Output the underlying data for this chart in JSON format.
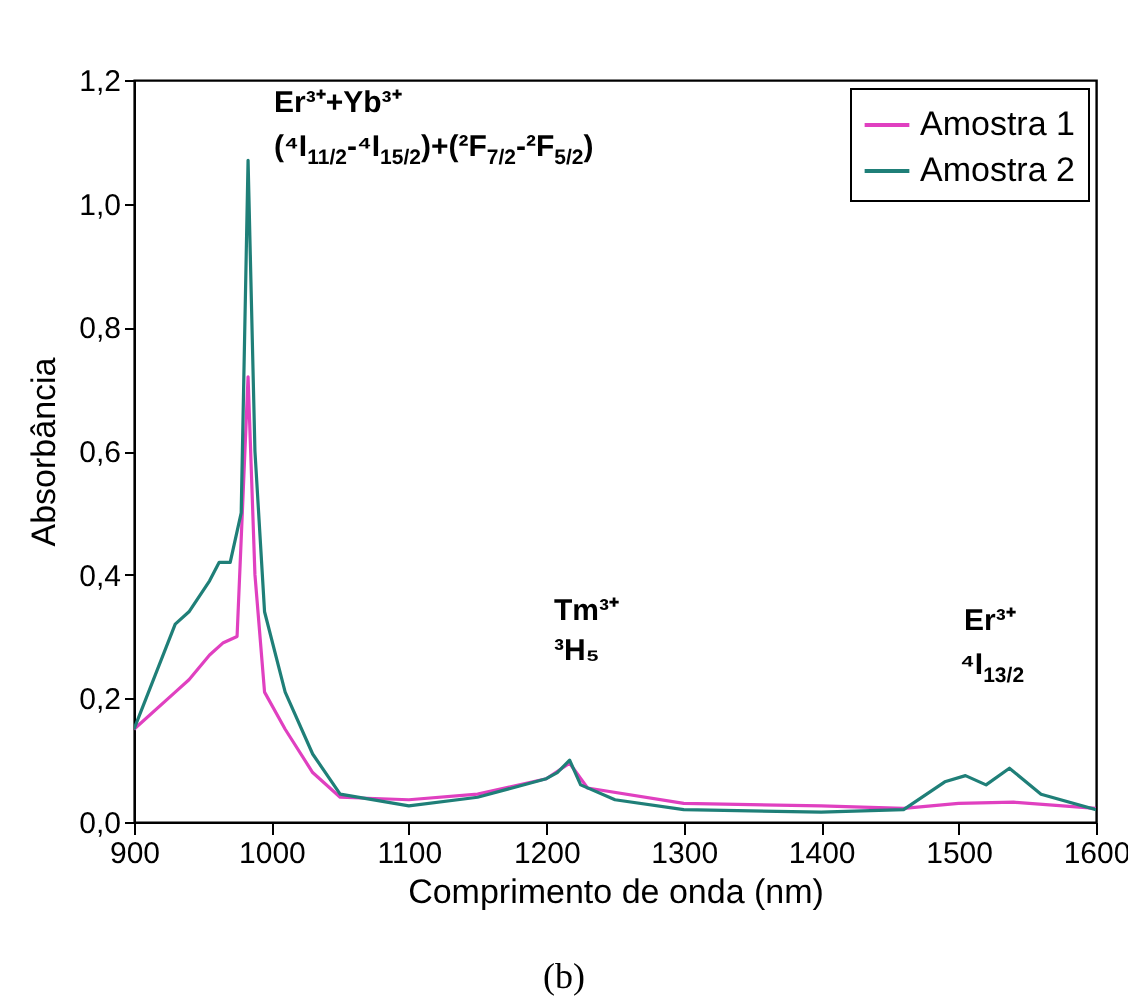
{
  "chart_data": {
    "type": "line",
    "xlabel": "Comprimento de onda (nm)",
    "ylabel": "Absorbância",
    "xlim": [
      900,
      1600
    ],
    "xticks": [
      900,
      1000,
      1100,
      1200,
      1300,
      1400,
      1500,
      1600
    ],
    "ylim": [
      0,
      1.2
    ],
    "yticks": [
      {
        "value": 0,
        "label": "0,0"
      },
      {
        "value": 0.2,
        "label": "0,2"
      },
      {
        "value": 0.4,
        "label": "0,4"
      },
      {
        "value": 0.6,
        "label": "0,6"
      },
      {
        "value": 0.8,
        "label": "0,8"
      },
      {
        "value": 1.0,
        "label": "1,0"
      },
      {
        "value": 1.2,
        "label": "1,2"
      }
    ],
    "legend": "top right",
    "grid": false,
    "marker": "none",
    "line_style": "solid",
    "series": [
      {
        "name": "Amostra 1",
        "color": "#e040c0",
        "x": [
          900,
          930,
          940,
          955,
          965,
          975,
          983,
          988,
          995,
          1010,
          1030,
          1050,
          1100,
          1150,
          1200,
          1217,
          1230,
          1300,
          1400,
          1460,
          1500,
          1540,
          1600
        ],
        "values": [
          0.15,
          0.21,
          0.23,
          0.27,
          0.29,
          0.3,
          0.72,
          0.4,
          0.21,
          0.15,
          0.08,
          0.04,
          0.036,
          0.045,
          0.07,
          0.095,
          0.055,
          0.03,
          0.026,
          0.022,
          0.03,
          0.032,
          0.022
        ]
      },
      {
        "name": "Amostra 2",
        "color": "#1f7f78",
        "x": [
          900,
          930,
          940,
          955,
          962,
          970,
          978,
          983,
          988,
          995,
          1010,
          1030,
          1050,
          1100,
          1150,
          1200,
          1208,
          1217,
          1225,
          1250,
          1300,
          1400,
          1460,
          1490,
          1505,
          1520,
          1537,
          1560,
          1600
        ],
        "values": [
          0.15,
          0.32,
          0.34,
          0.39,
          0.42,
          0.42,
          0.5,
          1.07,
          0.6,
          0.34,
          0.21,
          0.11,
          0.045,
          0.026,
          0.04,
          0.07,
          0.08,
          0.1,
          0.06,
          0.036,
          0.02,
          0.016,
          0.02,
          0.065,
          0.075,
          0.06,
          0.087,
          0.045,
          0.02
        ]
      }
    ],
    "annotations": [
      "Er³⁺+Yb³⁺",
      "(⁴I$_{11/2}$-⁴I$_{15/2}$)+(²F$_{7/2}$-²F$_{5/2}$)",
      "Tm³⁺",
      "³H₅",
      "Er³⁺",
      "⁴I$_{13/2}$",
      "(b)"
    ]
  }
}
